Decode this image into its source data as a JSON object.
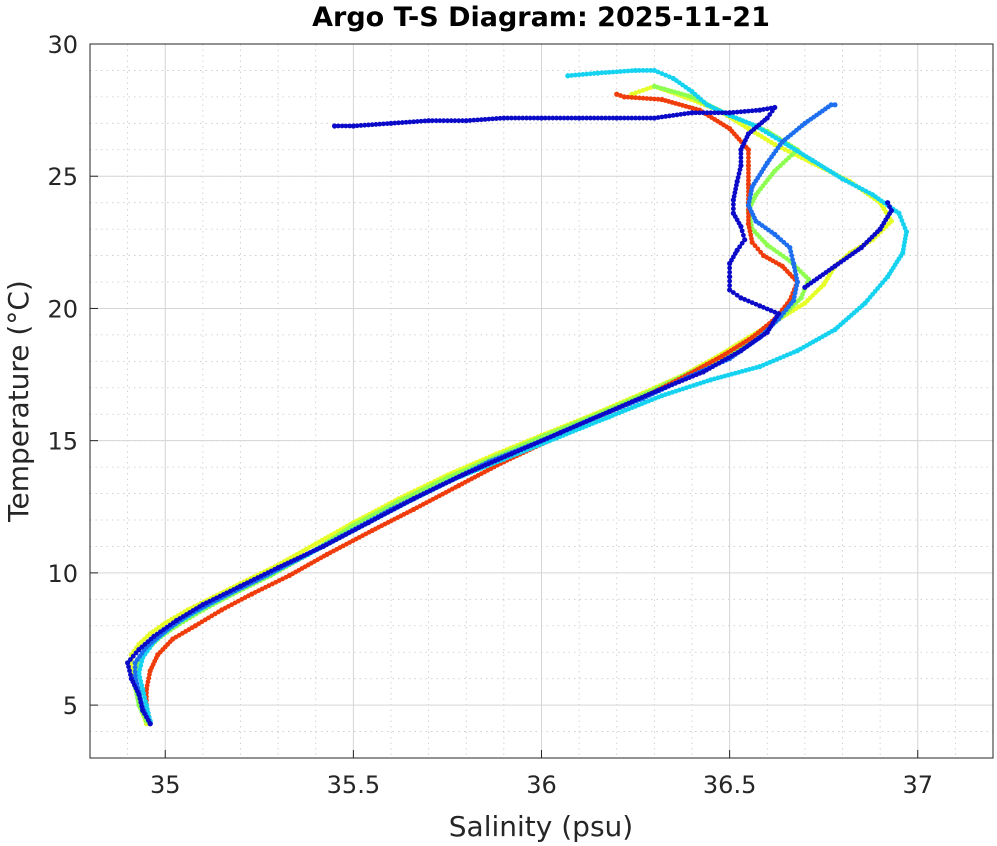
{
  "chart_data": {
    "type": "scatter",
    "title": "Argo T-S Diagram: 2025-11-21",
    "xlabel": "Salinity (psu)",
    "ylabel": "Temperature (°C)",
    "xlim": [
      34.8,
      37.2
    ],
    "ylim": [
      3,
      30
    ],
    "xticks": [
      35,
      35.5,
      36,
      36.5,
      37
    ],
    "xtick_labels": [
      "35",
      "35.5",
      "36",
      "36.5",
      "37"
    ],
    "yticks": [
      5,
      10,
      15,
      20,
      25,
      30
    ],
    "ytick_labels": [
      "5",
      "10",
      "15",
      "20",
      "25",
      "30"
    ],
    "grid": true,
    "minor_grid": true,
    "legend": "none",
    "colors": {
      "dark_blue": "#0a0ac8",
      "blue": "#1e6ef0",
      "cyan": "#14d2f0",
      "green": "#8cff50",
      "yellow": "#e6ff28",
      "red": "#f03c0a"
    },
    "series": [
      {
        "color": "#e6ff28",
        "points": [
          [
            34.95,
            4.3
          ],
          [
            34.94,
            4.7
          ],
          [
            34.93,
            5.2
          ],
          [
            34.92,
            5.8
          ],
          [
            34.91,
            6.4
          ],
          [
            34.91,
            6.9
          ],
          [
            34.93,
            7.3
          ],
          [
            34.96,
            7.7
          ],
          [
            35.0,
            8.1
          ],
          [
            35.06,
            8.6
          ],
          [
            35.13,
            9.1
          ],
          [
            35.2,
            9.6
          ],
          [
            35.3,
            10.3
          ],
          [
            35.4,
            11.1
          ],
          [
            35.5,
            11.9
          ],
          [
            35.62,
            12.8
          ],
          [
            35.75,
            13.7
          ],
          [
            35.88,
            14.5
          ],
          [
            36.0,
            15.2
          ],
          [
            36.14,
            16.0
          ],
          [
            36.27,
            16.8
          ],
          [
            36.38,
            17.5
          ],
          [
            36.47,
            18.2
          ],
          [
            36.55,
            18.9
          ],
          [
            36.62,
            19.5
          ],
          [
            36.7,
            20.2
          ],
          [
            36.75,
            20.9
          ],
          [
            36.78,
            21.6
          ],
          [
            36.82,
            22.1
          ],
          [
            36.88,
            22.6
          ],
          [
            36.93,
            23.3
          ],
          [
            36.9,
            24.0
          ],
          [
            36.82,
            24.8
          ],
          [
            36.72,
            25.5
          ],
          [
            36.62,
            26.2
          ],
          [
            36.55,
            26.8
          ],
          [
            36.47,
            27.5
          ],
          [
            36.38,
            28.0
          ],
          [
            36.3,
            28.4
          ],
          [
            36.24,
            28.1
          ]
        ]
      },
      {
        "color": "#8cff50",
        "points": [
          [
            34.95,
            4.4
          ],
          [
            34.93,
            5.0
          ],
          [
            34.92,
            5.7
          ],
          [
            34.92,
            6.3
          ],
          [
            34.94,
            6.9
          ],
          [
            34.98,
            7.5
          ],
          [
            35.03,
            8.0
          ],
          [
            35.1,
            8.6
          ],
          [
            35.18,
            9.2
          ],
          [
            35.28,
            9.9
          ],
          [
            35.38,
            10.7
          ],
          [
            35.5,
            11.8
          ],
          [
            35.62,
            12.7
          ],
          [
            35.75,
            13.6
          ],
          [
            35.88,
            14.4
          ],
          [
            36.01,
            15.2
          ],
          [
            36.15,
            16.0
          ],
          [
            36.28,
            16.8
          ],
          [
            36.4,
            17.6
          ],
          [
            36.5,
            18.3
          ],
          [
            36.58,
            19.0
          ],
          [
            36.64,
            19.7
          ],
          [
            36.69,
            20.4
          ],
          [
            36.71,
            21.1
          ],
          [
            36.66,
            21.8
          ],
          [
            36.6,
            22.4
          ],
          [
            36.56,
            23.0
          ],
          [
            36.55,
            23.7
          ],
          [
            36.57,
            24.3
          ],
          [
            36.62,
            25.2
          ],
          [
            36.68,
            26.0
          ],
          [
            36.6,
            26.7
          ],
          [
            36.5,
            27.3
          ],
          [
            36.4,
            28.0
          ],
          [
            36.3,
            28.4
          ]
        ]
      },
      {
        "color": "#f03c0a",
        "points": [
          [
            34.96,
            4.3
          ],
          [
            34.95,
            4.9
          ],
          [
            34.95,
            5.6
          ],
          [
            34.96,
            6.3
          ],
          [
            34.98,
            6.9
          ],
          [
            35.02,
            7.5
          ],
          [
            35.08,
            8.0
          ],
          [
            35.15,
            8.6
          ],
          [
            35.23,
            9.2
          ],
          [
            35.33,
            9.9
          ],
          [
            35.43,
            10.7
          ],
          [
            35.55,
            11.6
          ],
          [
            35.66,
            12.4
          ],
          [
            35.78,
            13.3
          ],
          [
            35.9,
            14.2
          ],
          [
            36.02,
            15.0
          ],
          [
            36.15,
            15.9
          ],
          [
            36.28,
            16.7
          ],
          [
            36.39,
            17.5
          ],
          [
            36.48,
            18.2
          ],
          [
            36.56,
            18.9
          ],
          [
            36.62,
            19.6
          ],
          [
            36.66,
            20.3
          ],
          [
            36.68,
            21.0
          ],
          [
            36.64,
            21.6
          ],
          [
            36.59,
            22.0
          ],
          [
            36.56,
            22.5
          ],
          [
            36.55,
            23.2
          ],
          [
            36.55,
            24.0
          ],
          [
            36.55,
            24.7
          ],
          [
            36.55,
            25.4
          ],
          [
            36.55,
            26.0
          ],
          [
            36.5,
            26.8
          ],
          [
            36.42,
            27.5
          ],
          [
            36.32,
            27.9
          ],
          [
            36.22,
            28.0
          ],
          [
            36.2,
            28.1
          ]
        ]
      },
      {
        "color": "#14d2f0",
        "points": [
          [
            34.96,
            4.4
          ],
          [
            34.95,
            5.0
          ],
          [
            34.94,
            5.6
          ],
          [
            34.93,
            6.2
          ],
          [
            34.94,
            6.8
          ],
          [
            34.97,
            7.4
          ],
          [
            35.02,
            8.0
          ],
          [
            35.09,
            8.6
          ],
          [
            35.17,
            9.2
          ],
          [
            35.27,
            9.9
          ],
          [
            35.38,
            10.7
          ],
          [
            35.5,
            11.6
          ],
          [
            35.62,
            12.5
          ],
          [
            35.76,
            13.5
          ],
          [
            35.9,
            14.3
          ],
          [
            36.04,
            15.1
          ],
          [
            36.18,
            15.9
          ],
          [
            36.32,
            16.7
          ],
          [
            36.45,
            17.3
          ],
          [
            36.58,
            17.8
          ],
          [
            36.68,
            18.4
          ],
          [
            36.78,
            19.2
          ],
          [
            36.86,
            20.2
          ],
          [
            36.92,
            21.2
          ],
          [
            36.96,
            22.1
          ],
          [
            36.97,
            22.9
          ],
          [
            36.95,
            23.6
          ],
          [
            36.88,
            24.3
          ],
          [
            36.8,
            24.9
          ],
          [
            36.72,
            25.6
          ],
          [
            36.64,
            26.3
          ],
          [
            36.57,
            26.9
          ],
          [
            36.5,
            27.3
          ],
          [
            36.44,
            27.7
          ],
          [
            36.4,
            28.2
          ],
          [
            36.35,
            28.7
          ],
          [
            36.3,
            29.0
          ],
          [
            36.25,
            29.0
          ],
          [
            36.15,
            28.9
          ],
          [
            36.07,
            28.8
          ]
        ]
      },
      {
        "color": "#1e6ef0",
        "points": [
          [
            34.96,
            4.3
          ],
          [
            34.94,
            4.9
          ],
          [
            34.93,
            5.5
          ],
          [
            34.92,
            6.1
          ],
          [
            34.92,
            6.6
          ],
          [
            34.95,
            7.2
          ],
          [
            35.0,
            7.8
          ],
          [
            35.06,
            8.4
          ],
          [
            35.14,
            9.0
          ],
          [
            35.24,
            9.7
          ],
          [
            35.35,
            10.5
          ],
          [
            35.47,
            11.4
          ],
          [
            35.6,
            12.4
          ],
          [
            35.73,
            13.3
          ],
          [
            35.86,
            14.2
          ],
          [
            36.0,
            15.0
          ],
          [
            36.13,
            15.8
          ],
          [
            36.27,
            16.6
          ],
          [
            36.39,
            17.4
          ],
          [
            36.5,
            18.1
          ],
          [
            36.58,
            18.9
          ],
          [
            36.63,
            19.6
          ],
          [
            36.67,
            20.3
          ],
          [
            36.68,
            21.0
          ],
          [
            36.67,
            21.7
          ],
          [
            36.66,
            22.3
          ],
          [
            36.62,
            22.8
          ],
          [
            36.57,
            23.3
          ],
          [
            36.55,
            23.9
          ],
          [
            36.56,
            24.6
          ],
          [
            36.6,
            25.5
          ],
          [
            36.64,
            26.3
          ],
          [
            36.7,
            27.0
          ],
          [
            36.77,
            27.7
          ],
          [
            36.78,
            27.7
          ]
        ]
      },
      {
        "color": "#0a0ac8",
        "points": [
          [
            34.96,
            4.3
          ],
          [
            34.94,
            4.8
          ],
          [
            34.93,
            5.4
          ],
          [
            34.91,
            6.0
          ],
          [
            34.9,
            6.6
          ],
          [
            34.93,
            7.1
          ],
          [
            34.97,
            7.6
          ],
          [
            35.03,
            8.2
          ],
          [
            35.1,
            8.8
          ],
          [
            35.2,
            9.5
          ],
          [
            35.3,
            10.2
          ],
          [
            35.42,
            11.0
          ],
          [
            35.54,
            11.9
          ],
          [
            35.66,
            12.8
          ],
          [
            35.79,
            13.7
          ],
          [
            35.92,
            14.5
          ],
          [
            36.05,
            15.3
          ],
          [
            36.18,
            16.1
          ],
          [
            36.31,
            16.9
          ],
          [
            36.43,
            17.6
          ],
          [
            36.53,
            18.4
          ],
          [
            36.6,
            19.1
          ],
          [
            36.63,
            19.8
          ],
          [
            36.58,
            20.1
          ],
          [
            36.53,
            20.4
          ],
          [
            36.5,
            20.7
          ],
          [
            36.5,
            21.2
          ],
          [
            36.5,
            21.7
          ],
          [
            36.52,
            22.2
          ],
          [
            36.54,
            22.6
          ],
          [
            36.53,
            23.1
          ],
          [
            36.51,
            23.6
          ],
          [
            36.51,
            24.1
          ],
          [
            36.52,
            24.8
          ],
          [
            36.53,
            25.4
          ],
          [
            36.53,
            26.0
          ],
          [
            36.55,
            26.6
          ],
          [
            36.6,
            27.2
          ],
          [
            36.62,
            27.6
          ],
          [
            36.58,
            27.5
          ],
          [
            36.5,
            27.4
          ],
          [
            36.4,
            27.4
          ],
          [
            36.3,
            27.2
          ],
          [
            36.2,
            27.2
          ],
          [
            36.1,
            27.2
          ],
          [
            36.0,
            27.2
          ],
          [
            35.9,
            27.2
          ],
          [
            35.8,
            27.1
          ],
          [
            35.7,
            27.1
          ],
          [
            35.6,
            27.0
          ],
          [
            35.5,
            26.9
          ],
          [
            35.45,
            26.9
          ],
          [
            36.7,
            20.8
          ],
          [
            36.78,
            21.6
          ],
          [
            36.85,
            22.3
          ],
          [
            36.9,
            23.0
          ],
          [
            36.93,
            23.7
          ],
          [
            36.92,
            24.0
          ]
        ]
      }
    ]
  }
}
